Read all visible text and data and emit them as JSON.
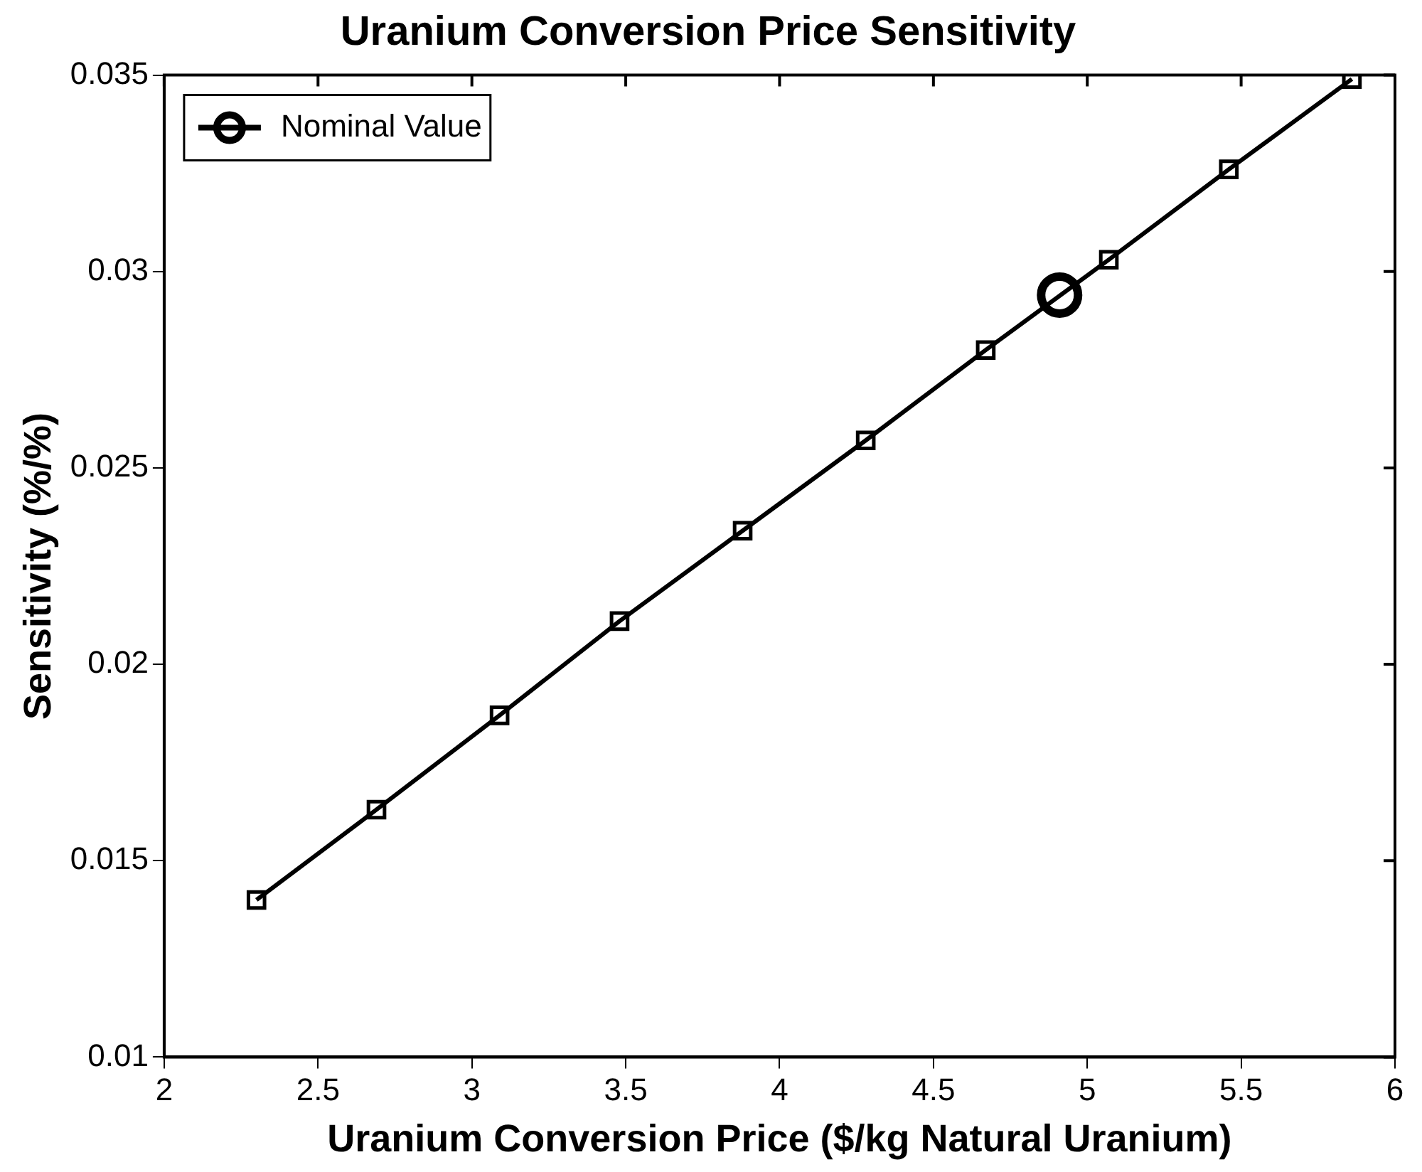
{
  "chart_data": {
    "type": "line",
    "title": "Uranium Conversion Price Sensitivity",
    "xlabel": "Uranium Conversion Price ($/kg Natural Uranium)",
    "ylabel": "Sensitivity (%/%)",
    "xlim": [
      2,
      6
    ],
    "xticks": [
      2,
      2.5,
      3,
      3.5,
      4,
      4.5,
      5,
      5.5,
      6
    ],
    "ylim": [
      0.01,
      0.035
    ],
    "yticks": [
      0.01,
      0.015,
      0.02,
      0.025,
      0.03,
      0.035
    ],
    "grid": false,
    "legend": "top left",
    "line_style": "solid",
    "series": [
      {
        "marker": "square",
        "color": "#000000",
        "x": [
          2.3,
          2.69,
          3.09,
          3.48,
          3.88,
          4.28,
          4.67,
          5.07,
          5.46,
          5.86
        ],
        "values": [
          0.014,
          0.0163,
          0.0187,
          0.0211,
          0.0234,
          0.0257,
          0.028,
          0.0303,
          0.0326,
          0.0349
        ]
      },
      {
        "type": "scatter",
        "marker": "circle",
        "name": "Nominal Value",
        "color": "#000000",
        "x": [
          4.91
        ],
        "values": [
          0.0294
        ]
      }
    ]
  }
}
